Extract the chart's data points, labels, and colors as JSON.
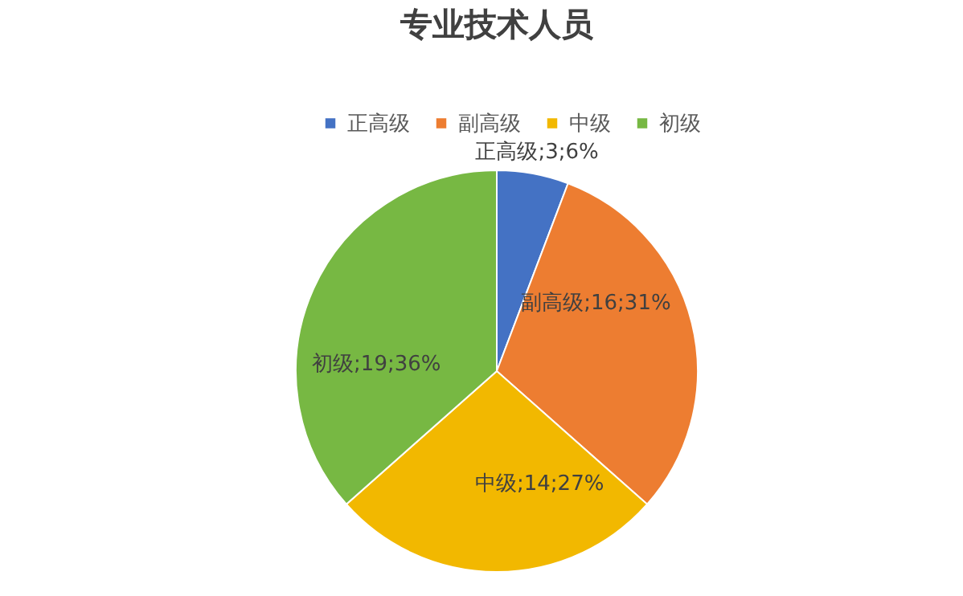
{
  "chart_data": {
    "type": "pie",
    "title": "专业技术人员",
    "categories": [
      "正高级",
      "副高级",
      "中级",
      "初级"
    ],
    "values": [
      3,
      16,
      14,
      19
    ],
    "value_labels": [
      "正高级;3;6%",
      "副高级;16;31%",
      "中级;14;27%",
      "初级;19;36%"
    ],
    "colors": [
      "#4472c4",
      "#ed7d31",
      "#f2b800",
      "#77b843"
    ],
    "legend": "top"
  }
}
